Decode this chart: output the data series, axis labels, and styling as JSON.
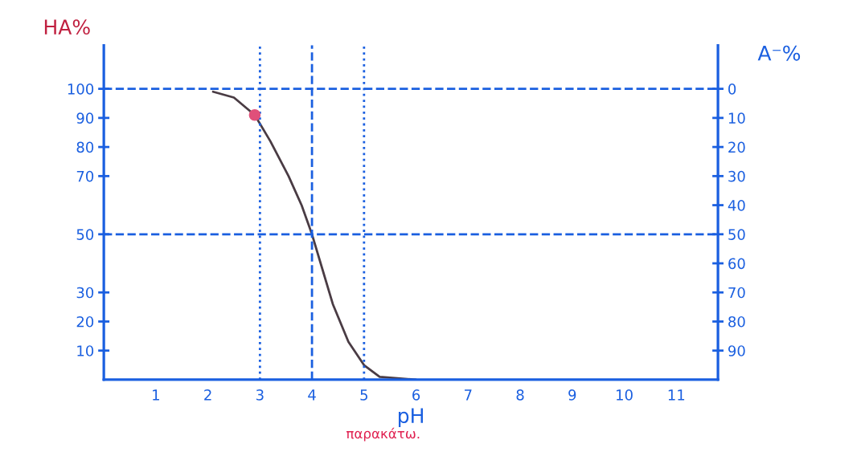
{
  "chart_data": {
    "type": "line",
    "xlabel": "pH",
    "ylabel": "HA%",
    "y2label": "A⁻%",
    "xlim": [
      0,
      11.8
    ],
    "xticks": [
      1,
      2,
      3,
      4,
      5,
      6,
      7,
      8,
      9,
      10,
      11
    ],
    "ylim": [
      0,
      115
    ],
    "yticks": [
      10,
      20,
      30,
      50,
      70,
      80,
      90,
      100
    ],
    "y2lim": [
      100,
      -15
    ],
    "y2ticks": [
      0,
      10,
      20,
      30,
      40,
      50,
      60,
      70,
      80,
      90
    ],
    "series": [
      {
        "marker": "none",
        "color": "#4a3c44",
        "x": [
          2.1,
          2.5,
          2.9,
          3.2,
          3.55,
          3.8,
          4.0,
          4.2,
          4.4,
          4.7,
          5.0,
          5.3,
          6.0
        ],
        "values": [
          99,
          97,
          91,
          82,
          70,
          60,
          50,
          38,
          26,
          13,
          5,
          1,
          0
        ]
      },
      {
        "type": "scatter",
        "marker": "circle",
        "color": "#e0507a",
        "x": [
          2.9
        ],
        "values": [
          91
        ]
      }
    ],
    "ref_lines": [
      {
        "axis": "y",
        "value": 100,
        "color": "#1a5fe0",
        "line_style": "dashed"
      },
      {
        "axis": "y",
        "value": 50,
        "color": "#1a5fe0",
        "line_style": "dashed"
      },
      {
        "axis": "x",
        "value": 3,
        "color": "#1a5fe0",
        "line_style": "dotted"
      },
      {
        "axis": "x",
        "value": 4,
        "color": "#1a5fe0",
        "line_style": "dashed"
      },
      {
        "axis": "x",
        "value": 5,
        "color": "#1a5fe0",
        "line_style": "dotted"
      }
    ],
    "annotations": [
      "παρακάτω."
    ],
    "grid": false,
    "legend": false,
    "line_style": "solid"
  }
}
